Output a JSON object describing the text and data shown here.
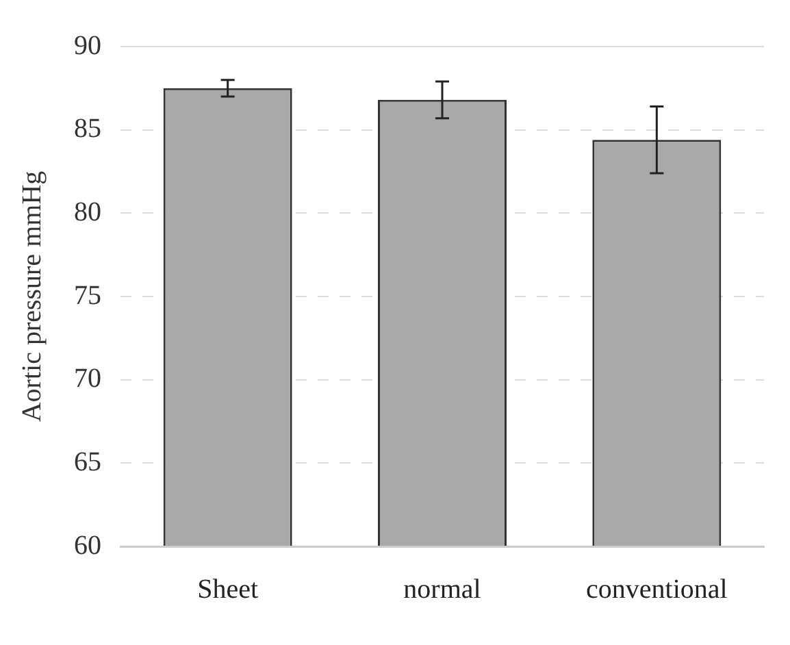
{
  "chart_data": {
    "type": "bar",
    "ylabel": "Aortic pressure mmHg",
    "categories": [
      "Sheet",
      "normal",
      "conventional"
    ],
    "values": [
      87.5,
      86.8,
      84.4
    ],
    "errors": [
      0.5,
      1.1,
      2.0
    ],
    "color": "#a9a9a9",
    "ylim": [
      60,
      90
    ],
    "yticks": [
      60,
      65,
      70,
      75,
      80,
      85,
      90
    ],
    "grid": "y"
  }
}
